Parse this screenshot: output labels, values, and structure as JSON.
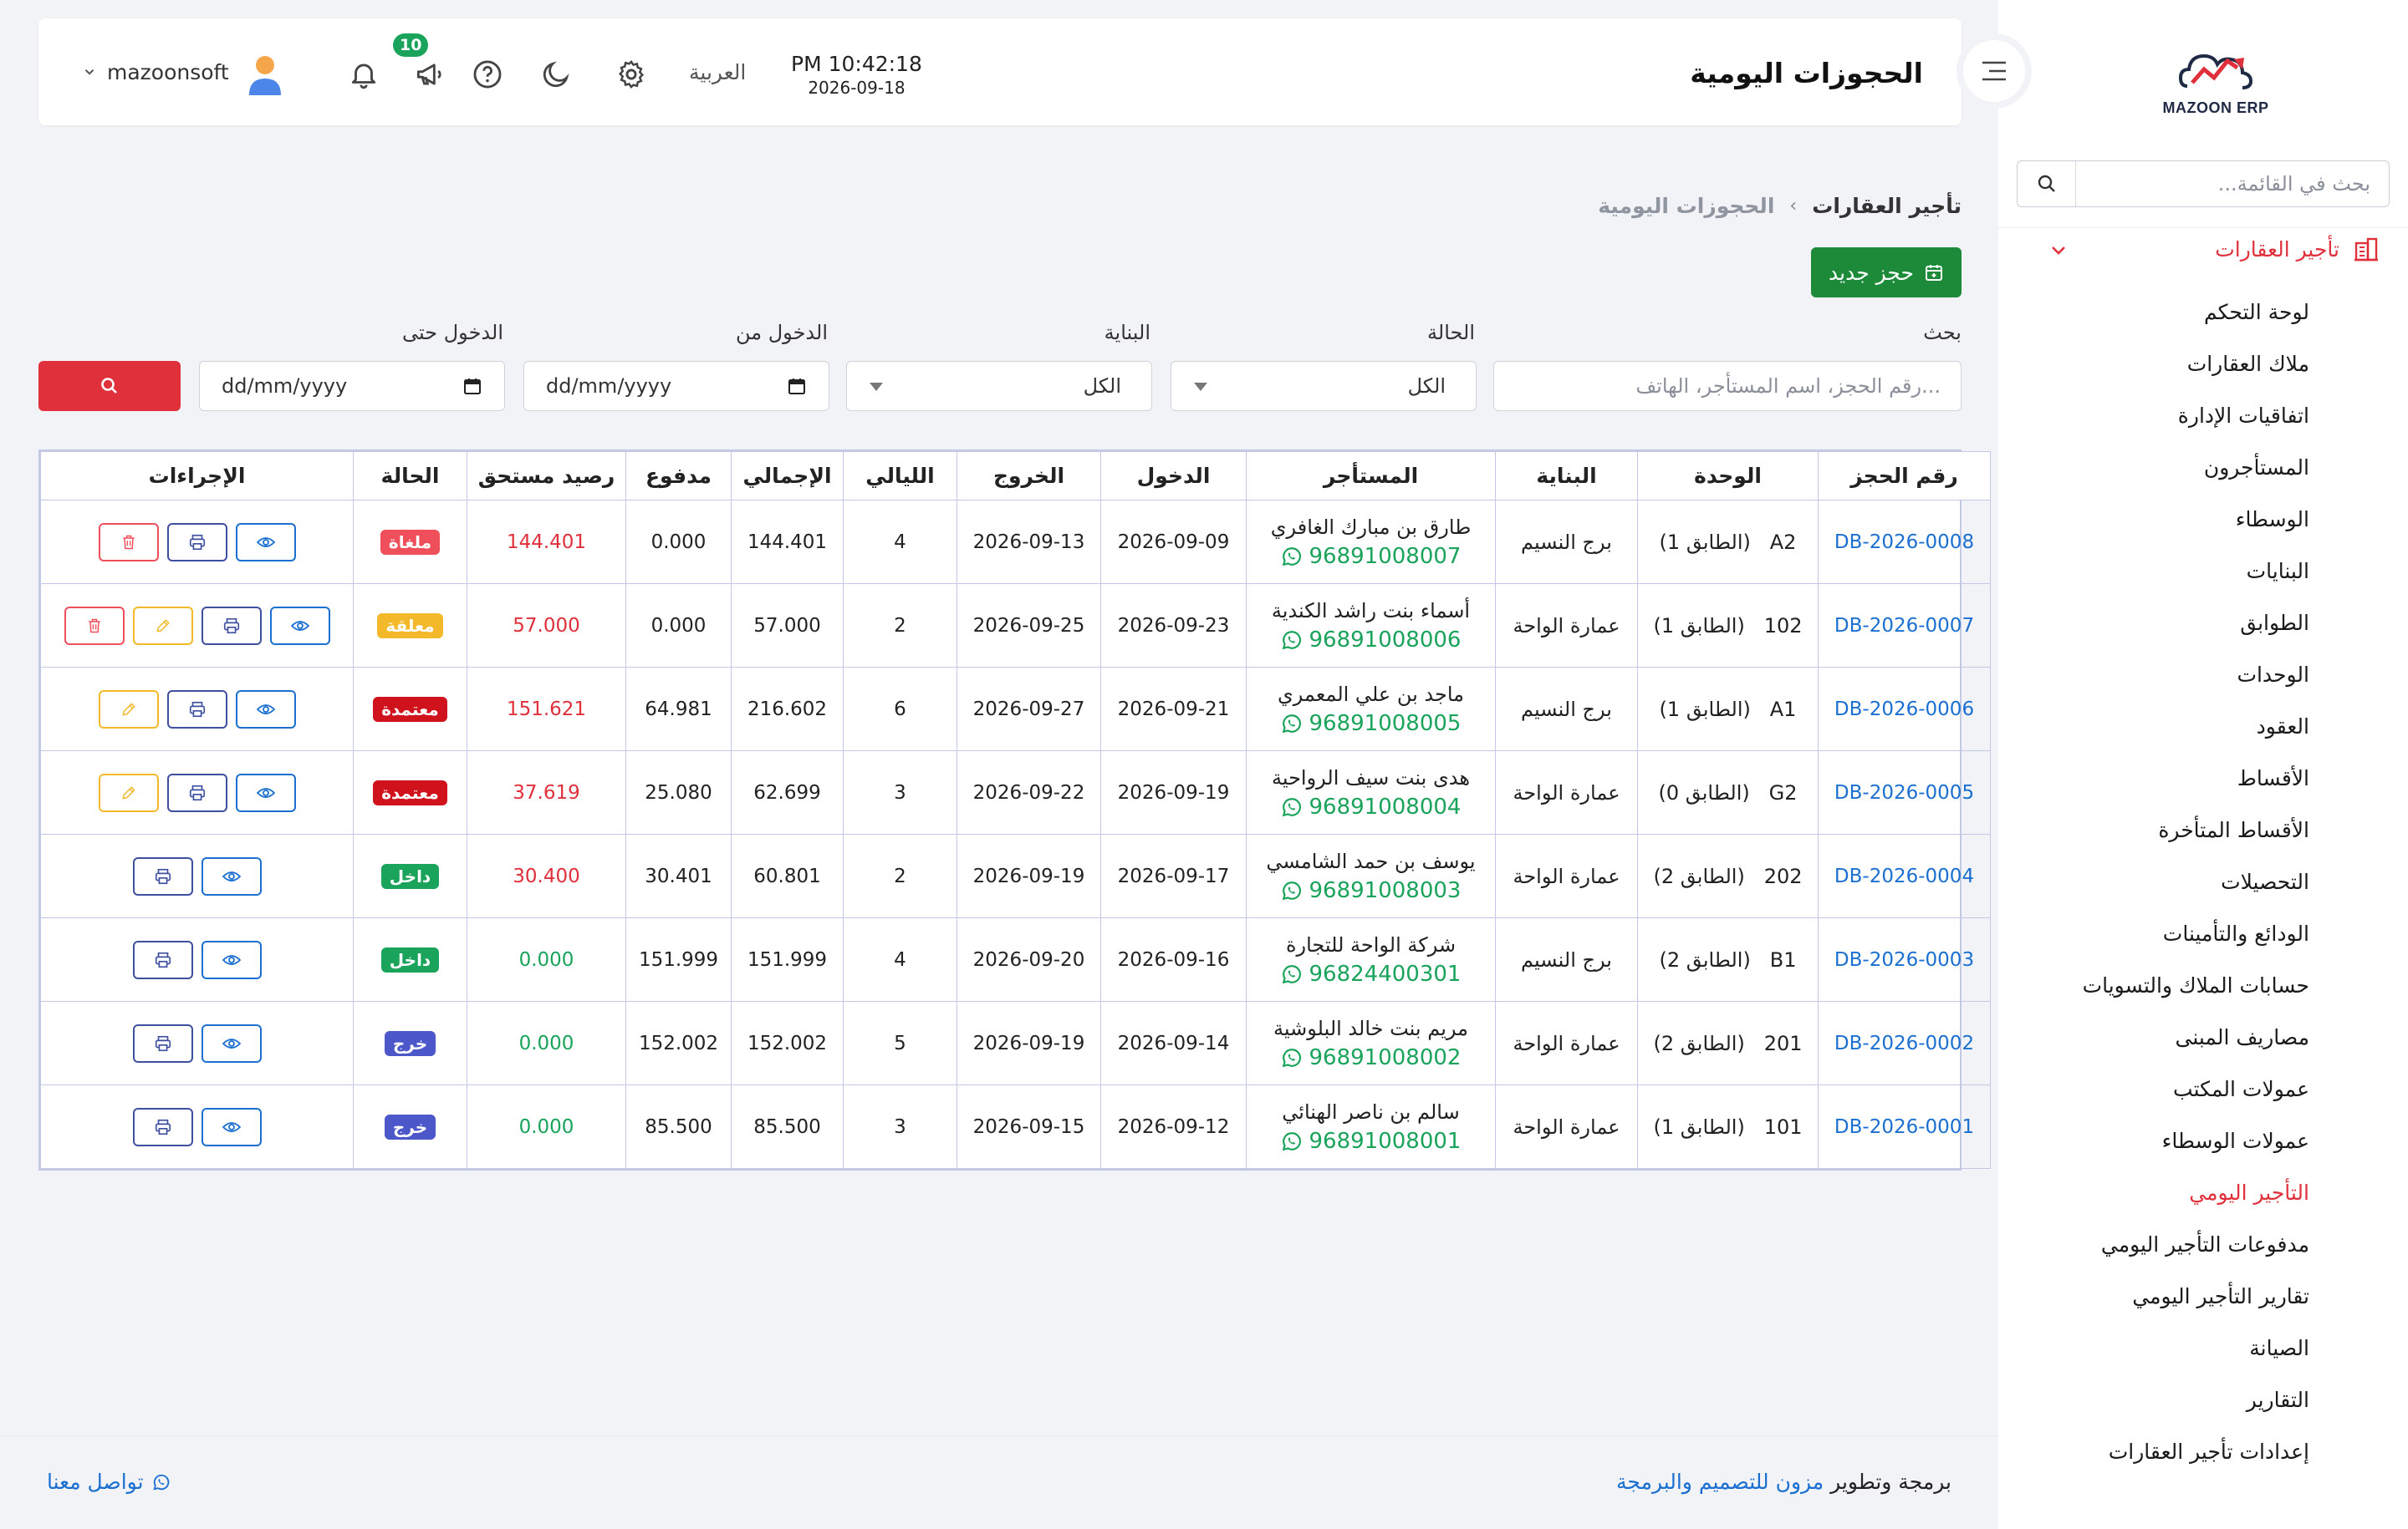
{
  "app": {
    "logo_text": "MAZOON ERP"
  },
  "sidebar": {
    "search_placeholder": "بحث في القائمة...",
    "section_label": "تأجير العقارات",
    "items": [
      {
        "label": "لوحة التحكم",
        "active": false
      },
      {
        "label": "ملاك العقارات",
        "active": false
      },
      {
        "label": "اتفاقيات الإدارة",
        "active": false
      },
      {
        "label": "المستأجرون",
        "active": false
      },
      {
        "label": "الوسطاء",
        "active": false
      },
      {
        "label": "البنايات",
        "active": false
      },
      {
        "label": "الطوابق",
        "active": false
      },
      {
        "label": "الوحدات",
        "active": false
      },
      {
        "label": "العقود",
        "active": false
      },
      {
        "label": "الأقساط",
        "active": false
      },
      {
        "label": "الأقساط المتأخرة",
        "active": false
      },
      {
        "label": "التحصيلات",
        "active": false
      },
      {
        "label": "الودائع والتأمينات",
        "active": false
      },
      {
        "label": "حسابات الملاك والتسويات",
        "active": false
      },
      {
        "label": "مصاريف المبنى",
        "active": false
      },
      {
        "label": "عمولات المكتب",
        "active": false
      },
      {
        "label": "عمولات الوسطاء",
        "active": false
      },
      {
        "label": "التأجير اليومي",
        "active": true
      },
      {
        "label": "مدفوعات التأجير اليومي",
        "active": false
      },
      {
        "label": "تقارير التأجير اليومي",
        "active": false
      },
      {
        "label": "الصيانة",
        "active": false
      },
      {
        "label": "التقارير",
        "active": false
      },
      {
        "label": "إعدادات تأجير العقارات",
        "active": false
      }
    ]
  },
  "header": {
    "title": "الحجوزات اليومية",
    "time": "PM 10:42:18",
    "date": "2026-09-18",
    "language": "العربية",
    "notification_count": "10",
    "username": "mazoonsoft"
  },
  "breadcrumb": {
    "main": "تأجير العقارات",
    "current": "الحجوزات اليومية"
  },
  "toolbar": {
    "new_booking_label": "حجز جديد"
  },
  "filters": {
    "search_label": "بحث",
    "search_placeholder": "رقم الحجز، اسم المستأجر، الهاتف...",
    "status_label": "الحالة",
    "status_value": "الكل",
    "building_label": "البناية",
    "building_value": "الكل",
    "from_label": "الدخول من",
    "from_value": "dd/mm/yyyy",
    "to_label": "الدخول حتى",
    "to_value": "dd/mm/yyyy"
  },
  "table": {
    "columns": {
      "booking_no": "رقم الحجز",
      "unit": "الوحدة",
      "building": "البناية",
      "tenant": "المستأجر",
      "check_in": "الدخول",
      "check_out": "الخروج",
      "nights": "الليالي",
      "total": "الإجمالي",
      "paid": "مدفوع",
      "due": "رصيد مستحق",
      "status": "الحالة",
      "actions": "الإجراءات"
    },
    "rows": [
      {
        "booking_no": "DB-2026-0008",
        "unit_code": "A2",
        "floor": "(الطابق 1)",
        "building": "برج النسيم",
        "tenant": "طارق بن مبارك الغافري",
        "phone": "96891008007",
        "check_in": "2026-09-09",
        "check_out": "2026-09-13",
        "nights": "4",
        "total": "144.401",
        "paid": "0.000",
        "due": "144.401",
        "due_color": "red",
        "status": "ملغاة",
        "status_kind": "cancelled",
        "actions": [
          "view",
          "print",
          "delete"
        ]
      },
      {
        "booking_no": "DB-2026-0007",
        "unit_code": "102",
        "floor": "(الطابق 1)",
        "building": "عمارة الواحة",
        "tenant": "أسماء بنت راشد الكندية",
        "phone": "96891008006",
        "check_in": "2026-09-23",
        "check_out": "2026-09-25",
        "nights": "2",
        "total": "57.000",
        "paid": "0.000",
        "due": "57.000",
        "due_color": "red",
        "status": "معلقة",
        "status_kind": "pending",
        "actions": [
          "view",
          "print",
          "edit",
          "delete"
        ]
      },
      {
        "booking_no": "DB-2026-0006",
        "unit_code": "A1",
        "floor": "(الطابق 1)",
        "building": "برج النسيم",
        "tenant": "ماجد بن علي المعمري",
        "phone": "96891008005",
        "check_in": "2026-09-21",
        "check_out": "2026-09-27",
        "nights": "6",
        "total": "216.602",
        "paid": "64.981",
        "due": "151.621",
        "due_color": "red",
        "status": "معتمدة",
        "status_kind": "approved",
        "actions": [
          "view",
          "print",
          "edit"
        ]
      },
      {
        "booking_no": "DB-2026-0005",
        "unit_code": "G2",
        "floor": "(الطابق 0)",
        "building": "عمارة الواحة",
        "tenant": "هدى بنت سيف الرواحية",
        "phone": "96891008004",
        "check_in": "2026-09-19",
        "check_out": "2026-09-22",
        "nights": "3",
        "total": "62.699",
        "paid": "25.080",
        "due": "37.619",
        "due_color": "red",
        "status": "معتمدة",
        "status_kind": "approved",
        "actions": [
          "view",
          "print",
          "edit"
        ]
      },
      {
        "booking_no": "DB-2026-0004",
        "unit_code": "202",
        "floor": "(الطابق 2)",
        "building": "عمارة الواحة",
        "tenant": "يوسف بن حمد الشامسي",
        "phone": "96891008003",
        "check_in": "2026-09-17",
        "check_out": "2026-09-19",
        "nights": "2",
        "total": "60.801",
        "paid": "30.401",
        "due": "30.400",
        "due_color": "red",
        "status": "داخل",
        "status_kind": "inside",
        "actions": [
          "view",
          "print"
        ]
      },
      {
        "booking_no": "DB-2026-0003",
        "unit_code": "B1",
        "floor": "(الطابق 2)",
        "building": "برج النسيم",
        "tenant": "شركة الواحة للتجارة",
        "phone": "96824400301",
        "check_in": "2026-09-16",
        "check_out": "2026-09-20",
        "nights": "4",
        "total": "151.999",
        "paid": "151.999",
        "due": "0.000",
        "due_color": "green",
        "status": "داخل",
        "status_kind": "inside",
        "actions": [
          "view",
          "print"
        ]
      },
      {
        "booking_no": "DB-2026-0002",
        "unit_code": "201",
        "floor": "(الطابق 2)",
        "building": "عمارة الواحة",
        "tenant": "مريم بنت خالد البلوشية",
        "phone": "96891008002",
        "check_in": "2026-09-14",
        "check_out": "2026-09-19",
        "nights": "5",
        "total": "152.002",
        "paid": "152.002",
        "due": "0.000",
        "due_color": "green",
        "status": "خرج",
        "status_kind": "out",
        "actions": [
          "view",
          "print"
        ]
      },
      {
        "booking_no": "DB-2026-0001",
        "unit_code": "101",
        "floor": "(الطابق 1)",
        "building": "عمارة الواحة",
        "tenant": "سالم بن ناصر الهنائي",
        "phone": "96891008001",
        "check_in": "2026-09-12",
        "check_out": "2026-09-15",
        "nights": "3",
        "total": "85.500",
        "paid": "85.500",
        "due": "0.000",
        "due_color": "green",
        "status": "خرج",
        "status_kind": "out",
        "actions": [
          "view",
          "print"
        ]
      }
    ]
  },
  "footer": {
    "credit_prefix": "برمجة وتطوير",
    "credit_brand": "مزون للتصميم والبرمجة",
    "contact_label": "تواصل معنا"
  },
  "colors": {
    "accent_red": "#e0303b",
    "primary_green": "#1d8a3a",
    "link_blue": "#1a6fd0",
    "success_green": "#1aa35b"
  },
  "icons": {
    "search": "search-icon",
    "menu": "hamburger-icon",
    "settings": "gear-icon",
    "theme": "moon-icon",
    "help": "help-icon",
    "announce": "megaphone-icon",
    "notifications": "bell-icon",
    "building": "building-icon",
    "calendar": "calendar-icon",
    "whatsapp": "whatsapp-icon",
    "view": "eye-icon",
    "print": "printer-icon",
    "edit": "pencil-icon",
    "delete": "trash-icon"
  }
}
